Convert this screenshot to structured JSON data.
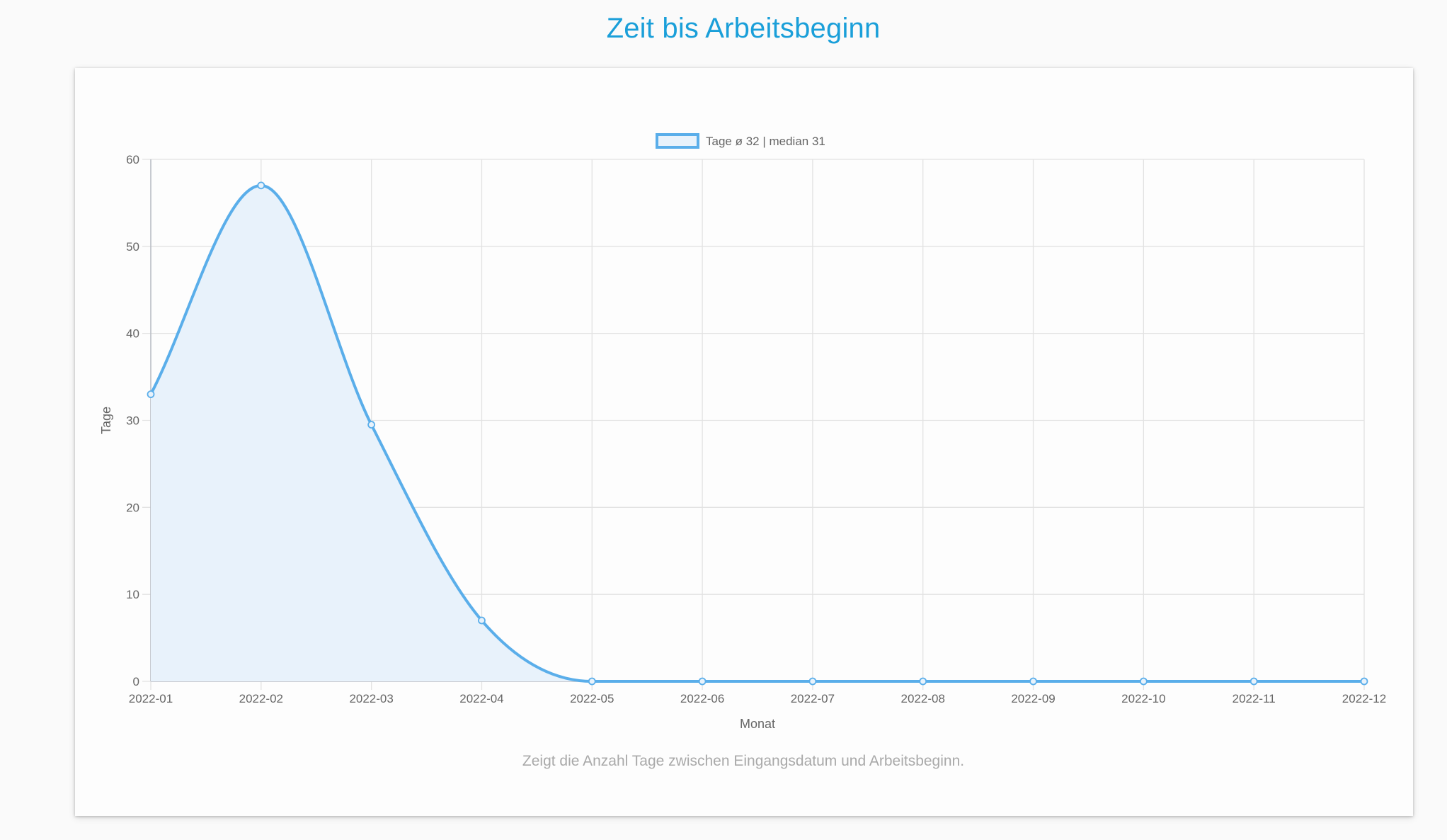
{
  "page": {
    "title": "Zeit bis Arbeitsbeginn",
    "caption": "Zeigt die Anzahl Tage zwischen Eingangsdatum und Arbeitsbeginn."
  },
  "chart_data": {
    "type": "area",
    "title": "",
    "xlabel": "Monat",
    "ylabel": "Tage",
    "categories": [
      "2022-01",
      "2022-02",
      "2022-03",
      "2022-04",
      "2022-05",
      "2022-06",
      "2022-07",
      "2022-08",
      "2022-09",
      "2022-10",
      "2022-11",
      "2022-12"
    ],
    "series": [
      {
        "name": "Tage ø 32 | median 31",
        "values": [
          33,
          57,
          29.5,
          7,
          0,
          0,
          0,
          0,
          0,
          0,
          0,
          0
        ],
        "color": "#5aaeea",
        "fill": "#e8f2fb"
      }
    ],
    "ylim": [
      0,
      60
    ],
    "yticks": [
      0,
      10,
      20,
      30,
      40,
      50,
      60
    ],
    "grid": true,
    "legend_position": "top"
  },
  "colors": {
    "title": "#1a9fd9",
    "grid": "#e2e2e2",
    "axis": "#b8bcc4",
    "tick_text": "#666666",
    "caption": "#a9a9a9"
  }
}
